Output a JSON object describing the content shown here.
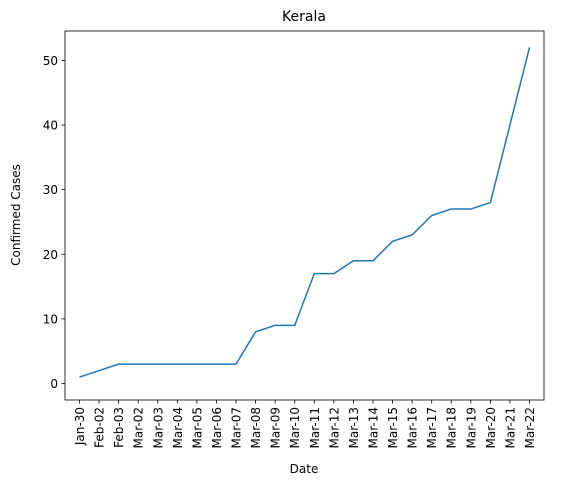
{
  "chart_data": {
    "type": "line",
    "title": "Kerala",
    "xlabel": "Date",
    "ylabel": "Confirmed Cases",
    "categories": [
      "Jan-30",
      "Feb-02",
      "Feb-03",
      "Mar-02",
      "Mar-03",
      "Mar-04",
      "Mar-05",
      "Mar-06",
      "Mar-07",
      "Mar-08",
      "Mar-09",
      "Mar-10",
      "Mar-11",
      "Mar-12",
      "Mar-13",
      "Mar-14",
      "Mar-15",
      "Mar-16",
      "Mar-17",
      "Mar-18",
      "Mar-19",
      "Mar-20",
      "Mar-21",
      "Mar-22"
    ],
    "series": [
      {
        "values": [
          1,
          2,
          3,
          3,
          3,
          3,
          3,
          3,
          3,
          8,
          9,
          9,
          17,
          17,
          19,
          19,
          22,
          23,
          26,
          27,
          27,
          28,
          40,
          52
        ],
        "color": "#1f77b4"
      }
    ],
    "yticks": [
      0,
      10,
      20,
      30,
      40,
      50
    ],
    "ylim": [
      -2.55,
      54.55
    ],
    "grid": false,
    "legend": "none"
  }
}
